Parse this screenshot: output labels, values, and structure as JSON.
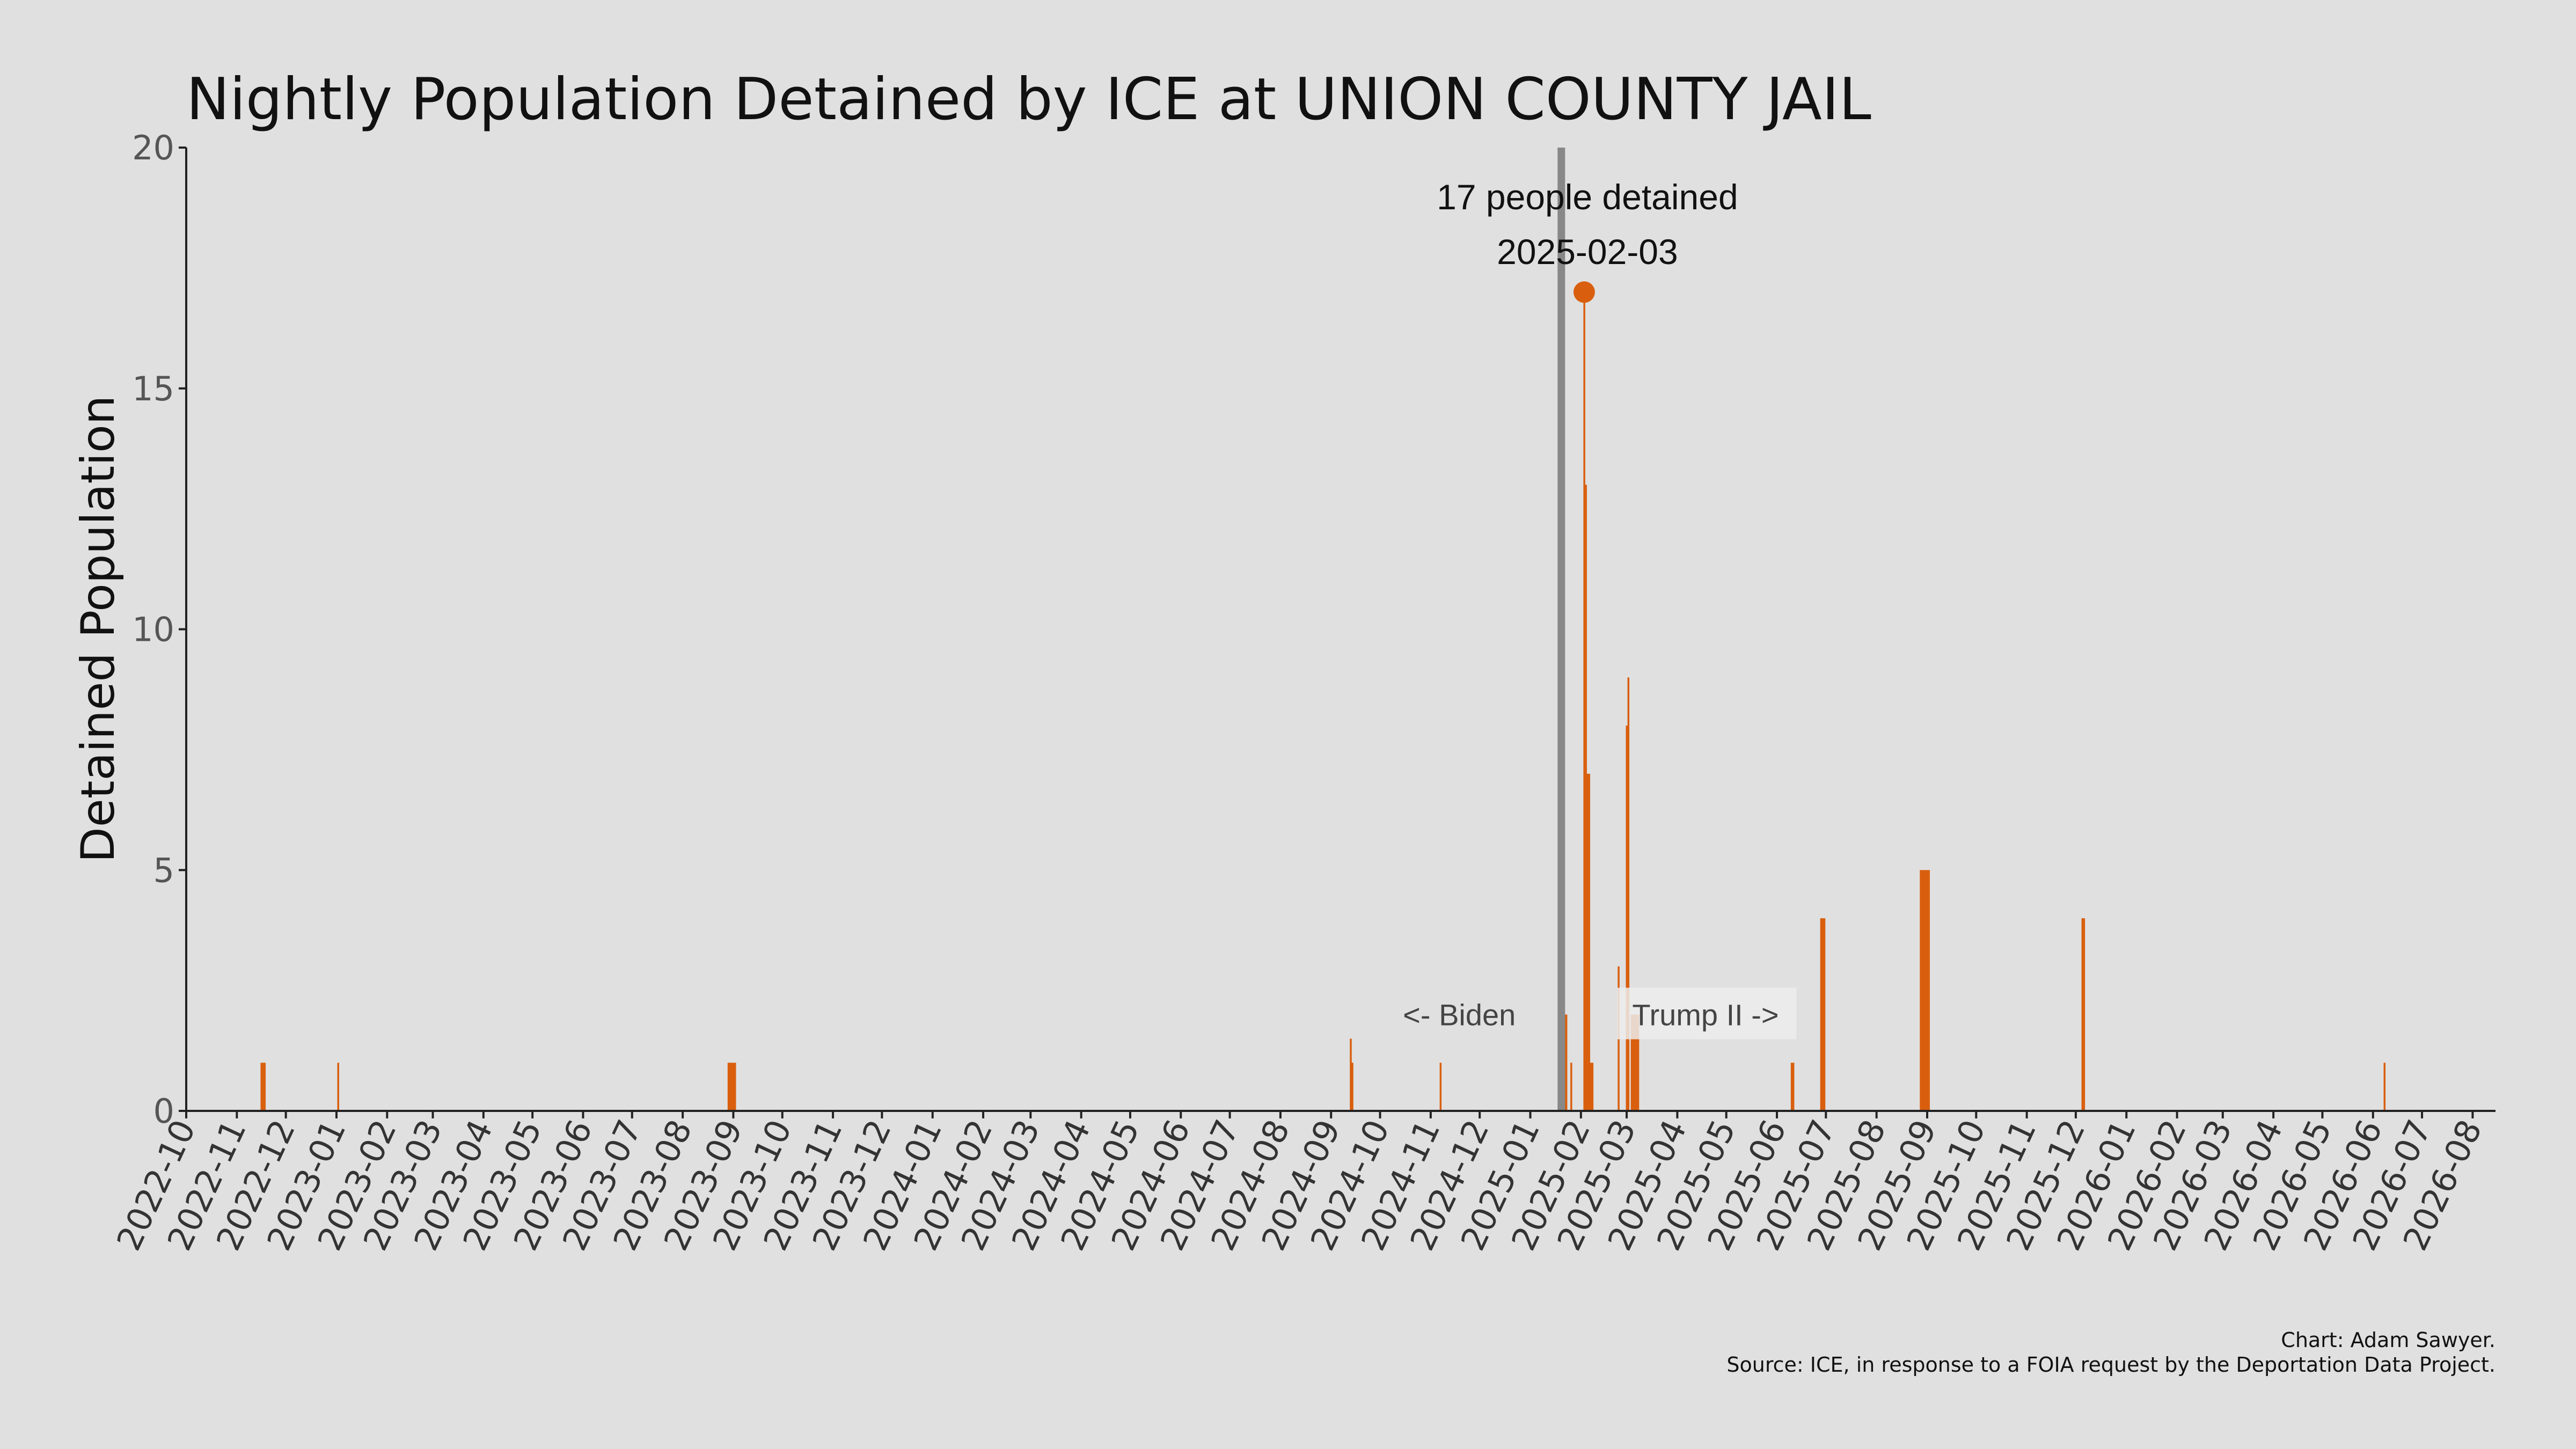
{
  "chart_data": {
    "type": "bar",
    "title": "Nightly Population Detained by ICE at UNION COUNTY JAIL",
    "xlabel": "",
    "ylabel": "Detained Population",
    "ylim": [
      0,
      20
    ],
    "yticks": [
      0,
      5,
      10,
      15,
      20
    ],
    "xlim": [
      "2022-10-01",
      "2026-08-15"
    ],
    "xticks": [
      "2022-10",
      "2022-11",
      "2022-12",
      "2023-01",
      "2023-02",
      "2023-03",
      "2023-04",
      "2023-05",
      "2023-06",
      "2023-07",
      "2023-08",
      "2023-09",
      "2023-10",
      "2023-11",
      "2023-12",
      "2024-01",
      "2024-02",
      "2024-03",
      "2024-04",
      "2024-05",
      "2024-06",
      "2024-07",
      "2024-08",
      "2024-09",
      "2024-10",
      "2024-11",
      "2024-12",
      "2025-01",
      "2025-02",
      "2025-03",
      "2025-04",
      "2025-05",
      "2025-06",
      "2025-07",
      "2025-08",
      "2025-09",
      "2025-10",
      "2025-11",
      "2025-12",
      "2026-01",
      "2026-02",
      "2026-03",
      "2026-04",
      "2026-05",
      "2026-06",
      "2026-07",
      "2026-08"
    ],
    "grid": false,
    "bar_color": "#d95f0e",
    "series": [
      {
        "points": [
          {
            "date": "2022-11-16",
            "value": 1
          },
          {
            "date": "2022-11-17",
            "value": 1
          },
          {
            "date": "2022-11-18",
            "value": 1
          },
          {
            "date": "2023-01-02",
            "value": 1
          },
          {
            "date": "2023-08-29",
            "value": 1
          },
          {
            "date": "2023-08-30",
            "value": 1
          },
          {
            "date": "2023-08-31",
            "value": 1
          },
          {
            "date": "2023-09-01",
            "value": 1
          },
          {
            "date": "2023-09-02",
            "value": 1
          },
          {
            "date": "2024-09-13",
            "value": 1.5
          },
          {
            "date": "2024-09-14",
            "value": 1
          },
          {
            "date": "2024-11-07",
            "value": 1
          },
          {
            "date": "2025-01-22",
            "value": 2
          },
          {
            "date": "2025-01-23",
            "value": 2
          },
          {
            "date": "2025-01-26",
            "value": 1
          },
          {
            "date": "2025-02-03",
            "value": 17
          },
          {
            "date": "2025-02-04",
            "value": 13
          },
          {
            "date": "2025-02-05",
            "value": 7
          },
          {
            "date": "2025-02-06",
            "value": 7
          },
          {
            "date": "2025-02-07",
            "value": 1
          },
          {
            "date": "2025-02-08",
            "value": 1
          },
          {
            "date": "2025-02-24",
            "value": 3
          },
          {
            "date": "2025-03-01",
            "value": 8
          },
          {
            "date": "2025-03-02",
            "value": 9
          },
          {
            "date": "2025-03-04",
            "value": 2
          },
          {
            "date": "2025-03-05",
            "value": 2
          },
          {
            "date": "2025-03-06",
            "value": 2
          },
          {
            "date": "2025-03-07",
            "value": 2
          },
          {
            "date": "2025-03-08",
            "value": 2
          },
          {
            "date": "2025-06-10",
            "value": 1
          },
          {
            "date": "2025-06-11",
            "value": 1
          },
          {
            "date": "2025-06-28",
            "value": 4
          },
          {
            "date": "2025-06-29",
            "value": 4
          },
          {
            "date": "2025-06-30",
            "value": 4
          },
          {
            "date": "2025-08-28",
            "value": 5
          },
          {
            "date": "2025-08-29",
            "value": 5
          },
          {
            "date": "2025-08-30",
            "value": 5
          },
          {
            "date": "2025-08-31",
            "value": 5
          },
          {
            "date": "2025-09-01",
            "value": 5
          },
          {
            "date": "2025-09-02",
            "value": 5
          },
          {
            "date": "2025-12-05",
            "value": 4
          },
          {
            "date": "2025-12-06",
            "value": 4
          },
          {
            "date": "2026-06-08",
            "value": 1
          }
        ]
      }
    ],
    "reference_line": {
      "date": "2025-01-20",
      "color": "#888888"
    },
    "highlight": {
      "date": "2025-02-03",
      "value": 17,
      "label_line1": "17 people detained",
      "label_line2": "2025-02-03"
    },
    "era_labels": {
      "before": "<- Biden",
      "after": "Trump II ->"
    }
  },
  "credits": {
    "line1": "Chart: Adam Sawyer.",
    "line2": "Source: ICE, in response to a FOIA request by the Deportation Data Project."
  }
}
